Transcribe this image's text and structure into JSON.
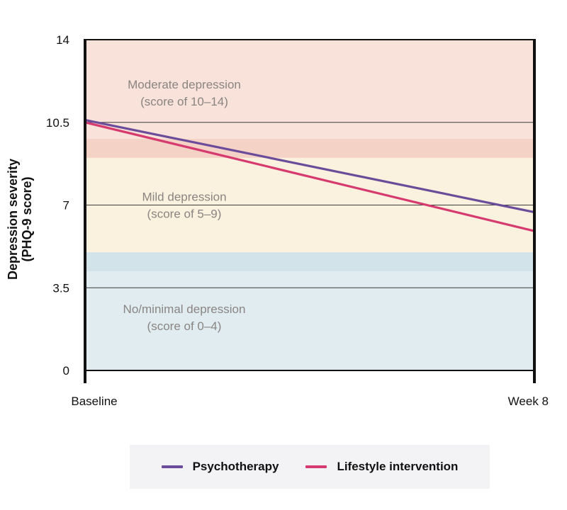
{
  "chart_data": {
    "type": "line",
    "ylabel_lines": [
      "Depression severity",
      "(PHQ-9 score)"
    ],
    "xlabel": "",
    "categories": [
      "Baseline",
      "Week 8"
    ],
    "y_ticks": [
      "0",
      "3.5",
      "7",
      "10.5",
      "14"
    ],
    "ylim": [
      0,
      14
    ],
    "grid": "horizontal",
    "legend_position": "bottom",
    "series": [
      {
        "name": "Psychotherapy",
        "values": [
          10.6,
          6.7
        ],
        "color": "#6b4c9a"
      },
      {
        "name": "Lifestyle intervention",
        "values": [
          10.5,
          5.9
        ],
        "color": "#d63b6f"
      }
    ],
    "bands": [
      {
        "line1": "Moderate depression",
        "line2": "(score of 10–14)",
        "from": 9.5,
        "to": 14,
        "color": "#f8e2d9"
      },
      {
        "line1": "Mild depression",
        "line2": "(score of 5–9)",
        "from": 4.5,
        "to": 9.5,
        "color": "#fbf1df"
      },
      {
        "line1": "No/minimal depression",
        "line2": "(score of 0–4)",
        "from": 0,
        "to": 4.5,
        "color": "#e1ecf1"
      }
    ],
    "band_overlaps": [
      {
        "from": 9.0,
        "to": 9.8,
        "color": "#f4d2c6"
      },
      {
        "from": 4.2,
        "to": 5.0,
        "color": "#d3e3ea"
      }
    ]
  }
}
